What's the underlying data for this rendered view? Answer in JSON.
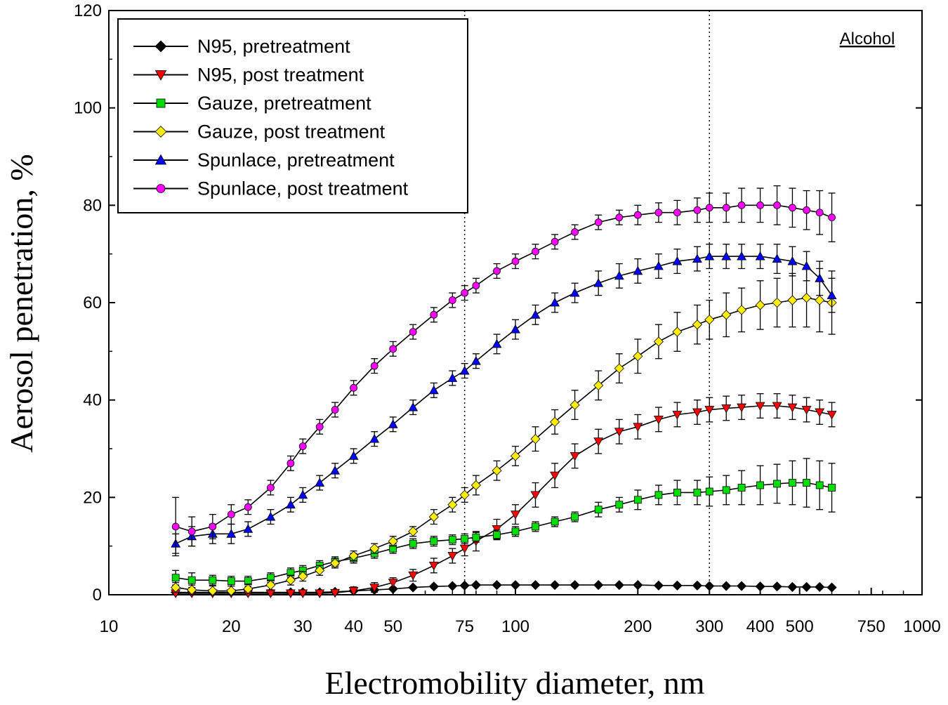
{
  "chart_data": {
    "type": "line",
    "title": "",
    "xlabel": "Electromobility diameter, nm",
    "ylabel": "Aerosol penetration, %",
    "xscale": "log",
    "xlim": [
      10,
      1000
    ],
    "ylim": [
      0,
      120
    ],
    "yticks": [
      0,
      20,
      40,
      60,
      80,
      100,
      120
    ],
    "xticks": [
      10,
      20,
      30,
      40,
      50,
      75,
      100,
      200,
      300,
      400,
      500,
      750,
      1000
    ],
    "reference_lines_x": [
      75,
      300
    ],
    "annotation": "Alcohol",
    "legend_position": "top-left",
    "grid": false,
    "x": [
      14.6,
      16,
      18,
      20,
      22,
      25,
      28,
      30,
      33,
      36,
      40,
      45,
      50,
      56,
      63,
      70,
      75,
      80,
      90,
      100,
      112,
      125,
      140,
      160,
      180,
      200,
      225,
      250,
      280,
      300,
      330,
      360,
      400,
      440,
      480,
      520,
      560,
      600
    ],
    "series": [
      {
        "name": "N95, pretreatment",
        "color": "#000000",
        "marker": "diamond",
        "values": [
          0.5,
          0.5,
          0.5,
          0.5,
          0.5,
          0.5,
          0.5,
          0.5,
          0.5,
          0.6,
          0.8,
          1.0,
          1.2,
          1.5,
          1.7,
          1.8,
          1.9,
          2.0,
          2.0,
          2.0,
          2.0,
          2.0,
          2.0,
          2.0,
          2.0,
          2.0,
          1.9,
          1.9,
          1.9,
          1.8,
          1.8,
          1.8,
          1.7,
          1.7,
          1.6,
          1.6,
          1.6,
          1.5
        ],
        "errors": [
          0.2,
          0.2,
          0.2,
          0.2,
          0.2,
          0.2,
          0.2,
          0.2,
          0.2,
          0.2,
          0.2,
          0.2,
          0.2,
          0.2,
          0.2,
          0.2,
          0.2,
          0.2,
          0.2,
          0.2,
          0.2,
          0.2,
          0.2,
          0.2,
          0.2,
          0.2,
          0.2,
          0.2,
          0.2,
          0.2,
          0.2,
          0.2,
          0.2,
          0.2,
          0.2,
          0.2,
          0.2,
          0.2
        ]
      },
      {
        "name": "N95, post treatment",
        "color": "#ff0000",
        "marker": "triangle-down",
        "values": [
          0.3,
          0.3,
          0.3,
          0.3,
          0.3,
          0.3,
          0.3,
          0.3,
          0.3,
          0.4,
          0.8,
          1.5,
          2.5,
          4.0,
          6.0,
          8.0,
          9.5,
          11.0,
          13.5,
          16.5,
          20.5,
          24.5,
          28.5,
          31.5,
          33.5,
          34.5,
          36.0,
          37.0,
          37.5,
          38.0,
          38.3,
          38.5,
          38.8,
          38.8,
          38.5,
          38.0,
          37.5,
          37.0
        ],
        "errors": [
          0.5,
          0.5,
          0.5,
          0.5,
          0.5,
          0.5,
          0.5,
          0.5,
          0.5,
          0.5,
          0.8,
          1.0,
          1.0,
          1.2,
          1.5,
          1.5,
          1.5,
          2.0,
          2.0,
          2.0,
          2.5,
          2.5,
          2.5,
          2.5,
          2.5,
          2.5,
          2.5,
          2.5,
          2.5,
          2.5,
          2.5,
          2.5,
          2.5,
          2.5,
          2.5,
          2.5,
          2.5,
          2.5
        ]
      },
      {
        "name": "Gauze, pretreatment",
        "color": "#00dd00",
        "marker": "square",
        "values": [
          3.5,
          3.0,
          3.0,
          2.8,
          2.8,
          3.5,
          4.5,
          5.0,
          6.0,
          6.8,
          7.5,
          8.5,
          9.5,
          10.5,
          11.0,
          11.3,
          11.5,
          11.8,
          12.3,
          13.0,
          14.0,
          15.0,
          16.0,
          17.5,
          18.5,
          19.5,
          20.5,
          21.0,
          21.0,
          21.2,
          21.5,
          22.0,
          22.5,
          22.8,
          23.0,
          23.0,
          22.5,
          22.0
        ],
        "errors": [
          1.5,
          1.5,
          1.0,
          1.0,
          1.0,
          1.0,
          1.0,
          1.0,
          1.0,
          1.0,
          1.0,
          1.0,
          1.0,
          1.0,
          1.0,
          1.0,
          1.0,
          1.0,
          1.0,
          1.0,
          1.0,
          1.0,
          1.0,
          1.5,
          1.5,
          2.0,
          2.0,
          2.5,
          2.5,
          3.0,
          3.0,
          3.5,
          4.0,
          4.0,
          4.5,
          5.0,
          5.0,
          5.0
        ]
      },
      {
        "name": "Gauze, post treatment",
        "color": "#ffee00",
        "marker": "diamond",
        "values": [
          1.5,
          1.0,
          0.8,
          0.8,
          1.2,
          2.0,
          3.0,
          3.8,
          5.0,
          6.5,
          8.0,
          9.5,
          11.0,
          13.0,
          16.0,
          18.5,
          20.5,
          22.5,
          25.5,
          28.5,
          32.0,
          35.5,
          39.0,
          43.0,
          46.5,
          49.0,
          52.0,
          54.0,
          55.5,
          56.5,
          57.5,
          58.5,
          59.5,
          60.0,
          60.5,
          61.0,
          60.5,
          60.0
        ],
        "errors": [
          1.0,
          1.0,
          1.0,
          1.0,
          1.0,
          1.0,
          1.0,
          1.0,
          1.0,
          1.0,
          1.0,
          1.0,
          1.0,
          1.0,
          1.5,
          1.5,
          1.5,
          2.0,
          2.0,
          2.0,
          2.5,
          2.5,
          3.0,
          3.0,
          3.0,
          3.5,
          3.5,
          4.0,
          4.0,
          4.0,
          4.5,
          4.5,
          5.0,
          5.0,
          5.5,
          6.0,
          6.5,
          6.5
        ]
      },
      {
        "name": "Spunlace, pretreatment",
        "color": "#0000ff",
        "marker": "triangle-up",
        "values": [
          10.5,
          12.0,
          12.5,
          12.5,
          13.5,
          16.0,
          18.5,
          20.5,
          23.0,
          25.5,
          28.5,
          32.0,
          35.0,
          38.5,
          42.0,
          44.5,
          46.0,
          48.0,
          51.5,
          54.5,
          57.5,
          60.0,
          62.0,
          64.0,
          65.5,
          66.5,
          67.5,
          68.5,
          69.0,
          69.5,
          69.5,
          69.5,
          69.5,
          69.0,
          68.5,
          67.5,
          65.0,
          61.5
        ],
        "errors": [
          2.0,
          2.0,
          2.0,
          2.0,
          1.5,
          1.5,
          1.5,
          1.5,
          1.5,
          1.5,
          1.5,
          1.5,
          1.5,
          1.5,
          1.5,
          1.5,
          1.5,
          1.5,
          2.0,
          2.0,
          2.0,
          2.0,
          2.0,
          2.5,
          2.5,
          2.5,
          2.5,
          2.5,
          2.5,
          2.5,
          2.5,
          2.5,
          2.5,
          3.0,
          3.0,
          3.0,
          3.5,
          3.5
        ]
      },
      {
        "name": "Spunlace, post treatment",
        "color": "#ff00ff",
        "marker": "circle",
        "values": [
          14.0,
          13.0,
          14.0,
          16.5,
          18.0,
          22.0,
          27.0,
          30.5,
          34.5,
          38.0,
          42.5,
          47.0,
          50.5,
          54.0,
          57.5,
          60.5,
          62.0,
          63.5,
          66.5,
          68.5,
          70.5,
          72.5,
          74.5,
          76.5,
          77.5,
          78.0,
          78.5,
          78.5,
          79.0,
          79.5,
          79.5,
          80.0,
          80.0,
          80.0,
          79.5,
          79.0,
          78.5,
          77.5
        ],
        "errors": [
          6.0,
          3.0,
          2.5,
          2.0,
          1.5,
          1.5,
          1.5,
          1.5,
          1.5,
          1.5,
          1.5,
          1.5,
          1.5,
          1.5,
          1.5,
          1.5,
          1.5,
          1.5,
          1.5,
          1.5,
          1.5,
          1.5,
          1.5,
          1.5,
          1.5,
          2.0,
          2.0,
          2.5,
          2.5,
          3.0,
          3.0,
          3.5,
          3.5,
          4.0,
          4.0,
          4.0,
          4.5,
          5.0
        ]
      }
    ]
  }
}
